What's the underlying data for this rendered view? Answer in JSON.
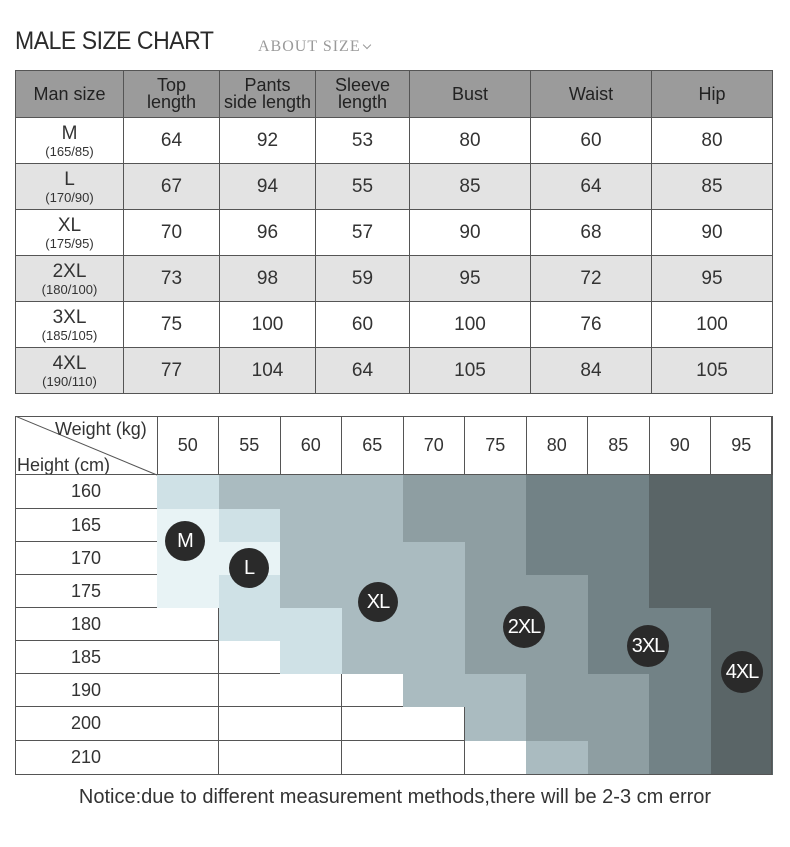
{
  "title": "MALE SIZE CHART",
  "subtitle": "ABOUT  SIZE",
  "size_table": {
    "headers": [
      {
        "line1": "Man size",
        "line2": ""
      },
      {
        "line1": "Top",
        "line2": "length"
      },
      {
        "line1": "Pants",
        "line2": "side length"
      },
      {
        "line1": "Sleeve",
        "line2": "length"
      },
      {
        "line1": "Bust",
        "line2": ""
      },
      {
        "line1": "Waist",
        "line2": ""
      },
      {
        "line1": "Hip",
        "line2": ""
      }
    ],
    "rows": [
      {
        "size": "M",
        "ref": "(165/85)",
        "values": [
          "64",
          "92",
          "53",
          "80",
          "60",
          "80"
        ]
      },
      {
        "size": "L",
        "ref": "(170/90)",
        "values": [
          "67",
          "94",
          "55",
          "85",
          "64",
          "85"
        ]
      },
      {
        "size": "XL",
        "ref": "(175/95)",
        "values": [
          "70",
          "96",
          "57",
          "90",
          "68",
          "90"
        ]
      },
      {
        "size": "2XL",
        "ref": "(180/100)",
        "values": [
          "73",
          "98",
          "59",
          "95",
          "72",
          "95"
        ]
      },
      {
        "size": "3XL",
        "ref": "(185/105)",
        "values": [
          "75",
          "100",
          "60",
          "100",
          "76",
          "100"
        ]
      },
      {
        "size": "4XL",
        "ref": "(190/110)",
        "values": [
          "77",
          "104",
          "64",
          "105",
          "84",
          "105"
        ]
      }
    ]
  },
  "grid": {
    "weight_label": "Weight (kg)",
    "height_label": "Height (cm)",
    "weights": [
      "50",
      "55",
      "60",
      "65",
      "70",
      "75",
      "80",
      "85",
      "90",
      "95"
    ],
    "heights": [
      "160",
      "165",
      "170",
      "175",
      "180",
      "185",
      "190",
      "200",
      "210"
    ],
    "palette": {
      "0": "#ffffff",
      "1": "#e8f3f5",
      "2": "#cfe1e6",
      "3": "#aabbc0",
      "4": "#8e9ea2",
      "5": "#728286",
      "6": "#5a6567"
    },
    "shades": [
      [
        2,
        3,
        3,
        3,
        4,
        4,
        5,
        5,
        6,
        6
      ],
      [
        1,
        2,
        3,
        3,
        4,
        4,
        5,
        5,
        6,
        6
      ],
      [
        1,
        1,
        3,
        3,
        3,
        4,
        5,
        5,
        6,
        6
      ],
      [
        1,
        2,
        3,
        3,
        3,
        4,
        4,
        5,
        6,
        6
      ],
      [
        0,
        2,
        2,
        3,
        3,
        4,
        4,
        5,
        5,
        6
      ],
      [
        0,
        0,
        2,
        3,
        3,
        4,
        4,
        5,
        5,
        6
      ],
      [
        0,
        0,
        0,
        0,
        3,
        3,
        4,
        4,
        5,
        6
      ],
      [
        0,
        0,
        0,
        0,
        0,
        3,
        4,
        4,
        5,
        6
      ],
      [
        0,
        0,
        0,
        0,
        0,
        0,
        3,
        4,
        5,
        6
      ]
    ],
    "badges": [
      "M",
      "L",
      "XL",
      "2XL",
      "3XL",
      "4XL"
    ]
  },
  "notice": "Notice:due to different measurement methods,there will be 2-3 cm error"
}
